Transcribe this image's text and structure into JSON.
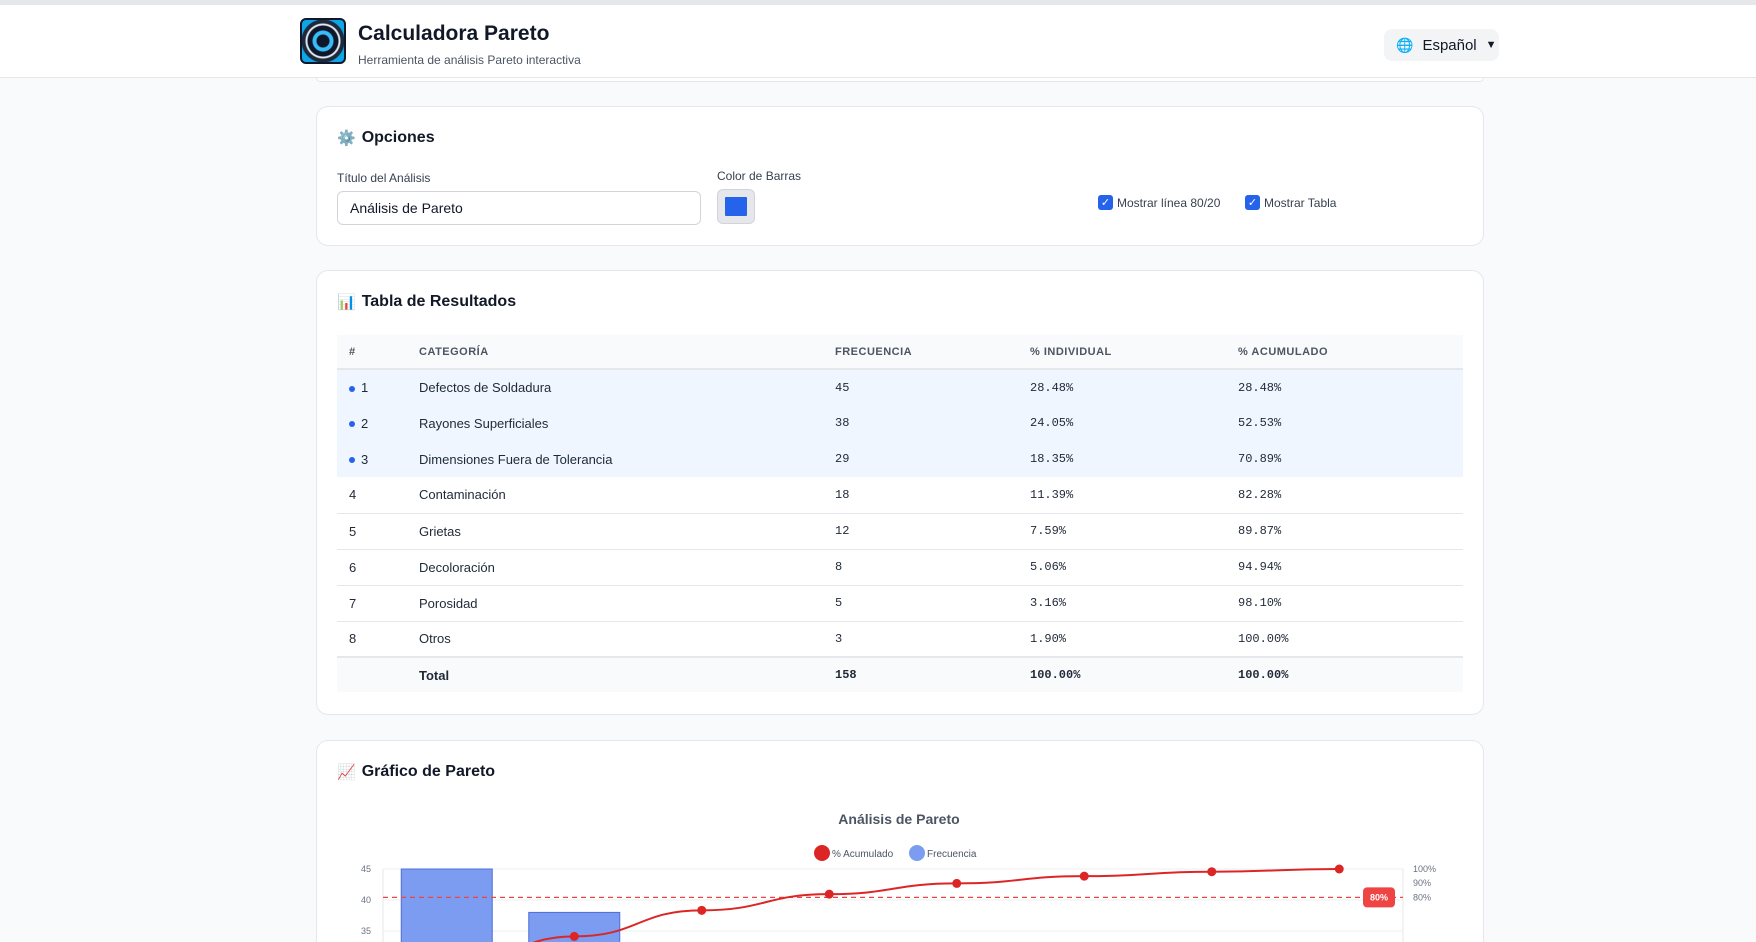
{
  "header": {
    "title": "Calculadora Pareto",
    "subtitle": "Herramienta de análisis Pareto interactiva",
    "language": "Español"
  },
  "options": {
    "title": "Opciones",
    "analysis_title_label": "Título del Análisis",
    "analysis_title_value": "Análisis de Pareto",
    "bar_color_label": "Color de Barras",
    "bar_color": "#2563eb",
    "show_8020_label": "Mostrar línea 80/20",
    "show_table_label": "Mostrar Tabla",
    "show_8020": true,
    "show_table": true
  },
  "results": {
    "title": "Tabla de Resultados",
    "columns": [
      "#",
      "CATEGORÍA",
      "FRECUENCIA",
      "% INDIVIDUAL",
      "% ACUMULADO"
    ],
    "rows": [
      {
        "n": "1",
        "category": "Defectos de Soldadura",
        "freq": "45",
        "ind": "28.48%",
        "acc": "28.48%",
        "vital": true
      },
      {
        "n": "2",
        "category": "Rayones Superficiales",
        "freq": "38",
        "ind": "24.05%",
        "acc": "52.53%",
        "vital": true
      },
      {
        "n": "3",
        "category": "Dimensiones Fuera de Tolerancia",
        "freq": "29",
        "ind": "18.35%",
        "acc": "70.89%",
        "vital": true
      },
      {
        "n": "4",
        "category": "Contaminación",
        "freq": "18",
        "ind": "11.39%",
        "acc": "82.28%",
        "vital": false
      },
      {
        "n": "5",
        "category": "Grietas",
        "freq": "12",
        "ind": "7.59%",
        "acc": "89.87%",
        "vital": false
      },
      {
        "n": "6",
        "category": "Decoloración",
        "freq": "8",
        "ind": "5.06%",
        "acc": "94.94%",
        "vital": false
      },
      {
        "n": "7",
        "category": "Porosidad",
        "freq": "5",
        "ind": "3.16%",
        "acc": "98.10%",
        "vital": false
      },
      {
        "n": "8",
        "category": "Otros",
        "freq": "3",
        "ind": "1.90%",
        "acc": "100.00%",
        "vital": false
      }
    ],
    "total": {
      "label": "Total",
      "freq": "158",
      "ind": "100.00%",
      "acc": "100.00%"
    }
  },
  "chart_section": {
    "title": "Gráfico de Pareto"
  },
  "chart_data": {
    "type": "bar",
    "title": "Análisis de Pareto",
    "legend": [
      "% Acumulado",
      "Frecuencia"
    ],
    "legend_position": "top",
    "categories": [
      "Defectos de Soldadura",
      "Rayones Superficiales",
      "Dimensiones Fuera de Tolerancia",
      "Contaminación",
      "Grietas",
      "Decoloración",
      "Porosidad",
      "Otros"
    ],
    "series": [
      {
        "name": "Frecuencia",
        "type": "bar",
        "axis": "left",
        "values": [
          45,
          38,
          29,
          18,
          12,
          8,
          5,
          3
        ],
        "color": "#7b9cf0"
      },
      {
        "name": "% Acumulado",
        "type": "line",
        "axis": "right",
        "values": [
          28.48,
          52.53,
          70.89,
          82.28,
          89.87,
          94.94,
          98.1,
          100.0
        ],
        "color": "#dc2626"
      }
    ],
    "y_left_ticks": [
      "45",
      "40",
      "35"
    ],
    "y_right_ticks": [
      "100%",
      "90%",
      "80%"
    ],
    "reference_line": {
      "value": 80,
      "label": "80%",
      "color": "#ef4444"
    },
    "grid": true
  }
}
